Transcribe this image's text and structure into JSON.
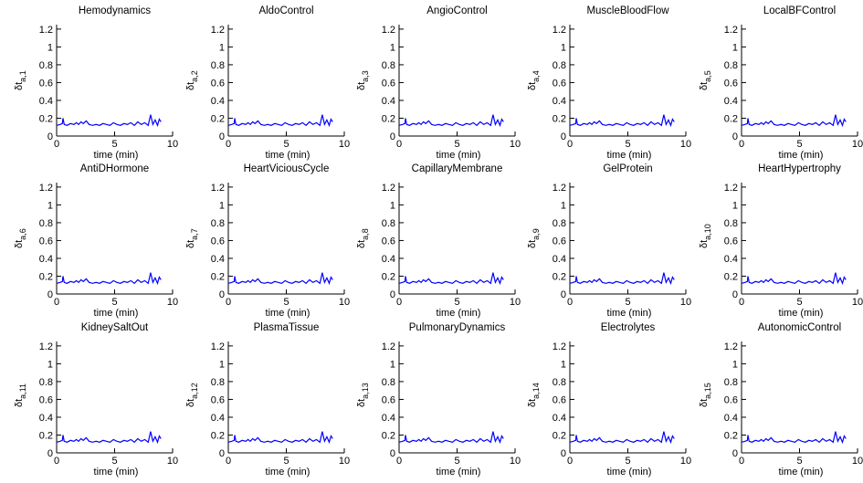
{
  "chart_data": {
    "type": "line",
    "layout": "3x5 grid of small multiples",
    "shared": {
      "xlabel": "time (min)",
      "ylabel_prefix": "δt",
      "xlim": [
        0,
        10
      ],
      "ylim": [
        0,
        1.25
      ],
      "xticks": [
        0,
        5,
        10
      ],
      "yticks": [
        0,
        0.2,
        0.4,
        0.6,
        0.8,
        1,
        1.2
      ],
      "grid": false,
      "legend": "none",
      "line_color": "#0000ff"
    },
    "panels": [
      {
        "title": "Hemodynamics",
        "ylabel_sub": "a,1"
      },
      {
        "title": "AldoControl",
        "ylabel_sub": "a,2"
      },
      {
        "title": "AngioControl",
        "ylabel_sub": "a,3"
      },
      {
        "title": "MuscleBloodFlow",
        "ylabel_sub": "a,4"
      },
      {
        "title": "LocalBFControl",
        "ylabel_sub": "a,5"
      },
      {
        "title": "AntiDHormone",
        "ylabel_sub": "a,6"
      },
      {
        "title": "HeartViciousCycle",
        "ylabel_sub": "a,7"
      },
      {
        "title": "CapillaryMembrane",
        "ylabel_sub": "a,8"
      },
      {
        "title": "GelProtein",
        "ylabel_sub": "a,9"
      },
      {
        "title": "HeartHypertrophy",
        "ylabel_sub": "a,10"
      },
      {
        "title": "KidneySaltOut",
        "ylabel_sub": "a,11"
      },
      {
        "title": "PlasmaTissue",
        "ylabel_sub": "a,12"
      },
      {
        "title": "PulmonaryDynamics",
        "ylabel_sub": "a,13"
      },
      {
        "title": "Electrolytes",
        "ylabel_sub": "a,14"
      },
      {
        "title": "AutonomicControl",
        "ylabel_sub": "a,15"
      }
    ],
    "series": [
      {
        "x": [
          0,
          0.3,
          0.5,
          0.55,
          0.65,
          0.9,
          1.2,
          1.5,
          1.7,
          1.9,
          2.1,
          2.3,
          2.55,
          2.8,
          3.1,
          3.4,
          3.7,
          4.0,
          4.3,
          4.6,
          4.9,
          5.2,
          5.5,
          5.8,
          6.1,
          6.4,
          6.7,
          7.0,
          7.3,
          7.6,
          7.9,
          8.1,
          8.3,
          8.5,
          8.7,
          8.85,
          9.0
        ],
        "y": [
          0.12,
          0.13,
          0.14,
          0.2,
          0.13,
          0.12,
          0.14,
          0.13,
          0.15,
          0.13,
          0.16,
          0.14,
          0.17,
          0.13,
          0.12,
          0.13,
          0.12,
          0.14,
          0.13,
          0.12,
          0.15,
          0.13,
          0.12,
          0.14,
          0.13,
          0.15,
          0.12,
          0.16,
          0.13,
          0.15,
          0.12,
          0.24,
          0.13,
          0.18,
          0.12,
          0.19,
          0.16
        ]
      }
    ]
  }
}
